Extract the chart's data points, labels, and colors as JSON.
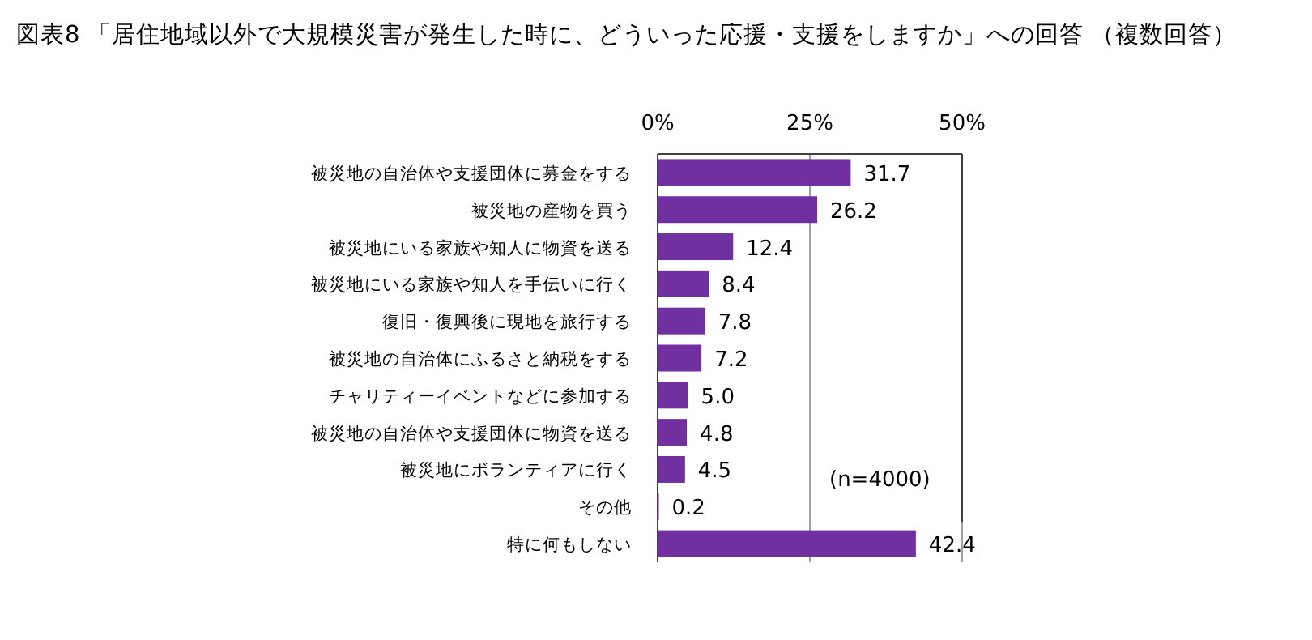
{
  "chart_data": {
    "type": "bar",
    "orientation": "horizontal",
    "title": "図表8 「居住地域以外で大規模災害が発生した時に、どういった応援・支援をしますか」への回答 （複数回答）",
    "categories": [
      "被災地の自治体や支援団体に募金をする",
      "被災地の産物を買う",
      "被災地にいる家族や知人に物資を送る",
      "被災地にいる家族や知人を手伝いに行く",
      "復旧・復興後に現地を旅行する",
      "被災地の自治体にふるさと納税をする",
      "チャリティーイベントなどに参加する",
      "被災地の自治体や支援団体に物資を送る",
      "被災地にボランティアに行く",
      "その他",
      "特に何もしない"
    ],
    "values": [
      31.7,
      26.2,
      12.4,
      8.4,
      7.8,
      7.2,
      5.0,
      4.8,
      4.5,
      0.2,
      42.4
    ],
    "value_labels": [
      "31.7",
      "26.2",
      "12.4",
      "8.4",
      "7.8",
      "7.2",
      "5.0",
      "4.8",
      "4.5",
      "0.2",
      "42.4"
    ],
    "color": "#7030a0",
    "xlim": [
      0,
      50
    ],
    "xticks": [
      {
        "value": 0,
        "label": "0%"
      },
      {
        "value": 25,
        "label": "25%"
      },
      {
        "value": 50,
        "label": "50%"
      }
    ],
    "grid": "x",
    "annotations": [
      "(n=4000)"
    ]
  }
}
